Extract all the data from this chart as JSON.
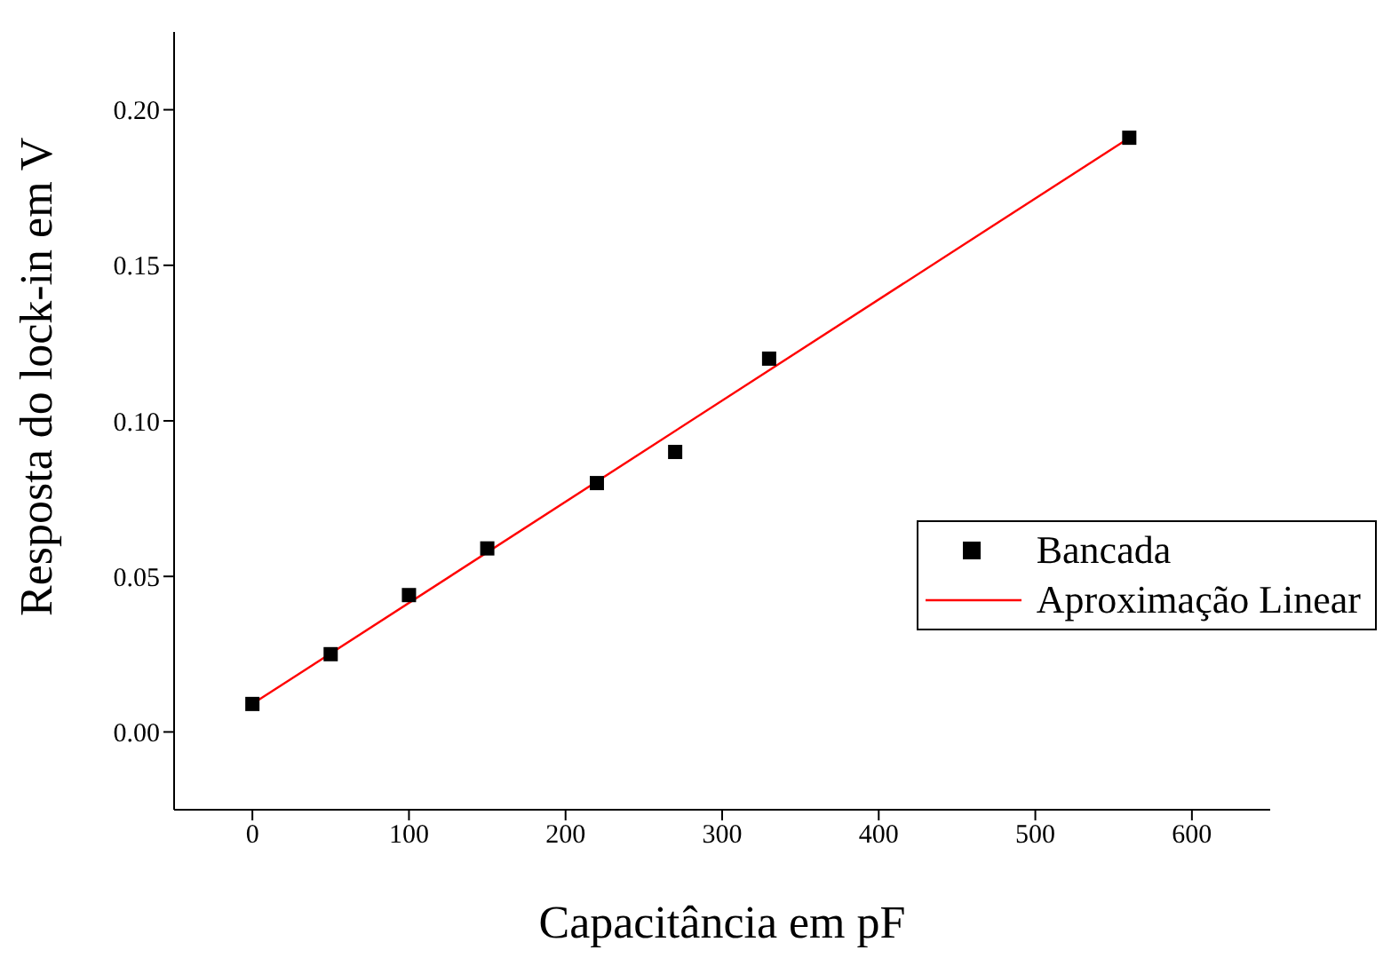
{
  "chart_data": {
    "type": "scatter",
    "xlabel": "Capacitância em pF",
    "ylabel": "Resposta do lock-in em V",
    "x": [
      0,
      50,
      100,
      150,
      220,
      270,
      330,
      560
    ],
    "series": [
      {
        "name": "Bancada",
        "color": "#000000",
        "marker": "square",
        "values": [
          0.009,
          0.025,
          0.044,
          0.059,
          0.08,
          0.09,
          0.12,
          0.191
        ]
      },
      {
        "name": "Aproximação Linear",
        "type": "line",
        "color": "#ff0000",
        "marker": "none",
        "line_style": "solid",
        "x": [
          0,
          560
        ],
        "values": [
          0.009,
          0.191
        ]
      }
    ],
    "xlim": [
      -50,
      650
    ],
    "xticks": [
      0,
      100,
      200,
      300,
      400,
      500,
      600
    ],
    "ylim": [
      -0.025,
      0.225
    ],
    "yticks": [
      {
        "value": 0,
        "label": "0.00"
      },
      {
        "value": 0.05,
        "label": "0.05"
      },
      {
        "value": 0.1,
        "label": "0.10"
      },
      {
        "value": 0.15,
        "label": "0.15"
      },
      {
        "value": 0.2,
        "label": "0.20"
      }
    ],
    "grid": false,
    "legend": "right"
  }
}
